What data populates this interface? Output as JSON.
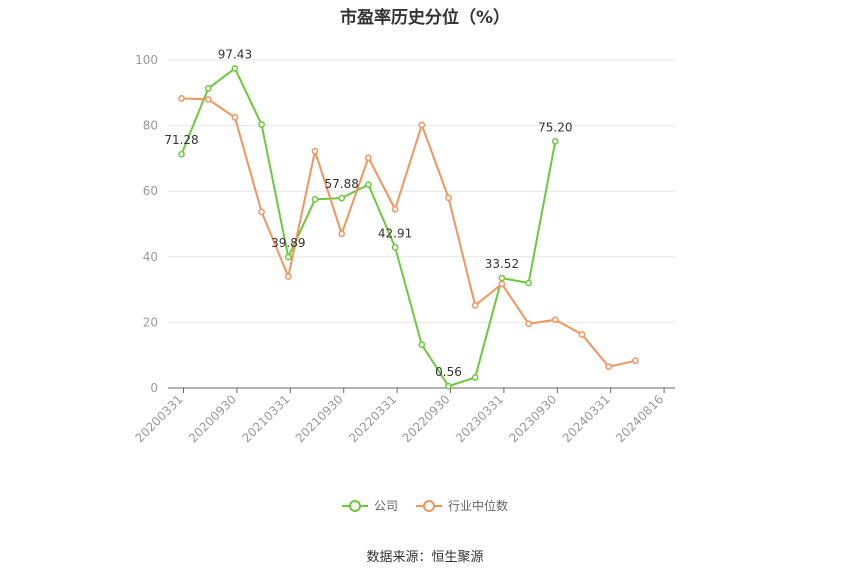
{
  "chart_data": {
    "type": "line",
    "title": "市盈率历史分位（%）",
    "source": "数据来源：恒生聚源",
    "ylim": [
      0,
      100
    ],
    "yticks": [
      0,
      20,
      40,
      60,
      80,
      100
    ],
    "x_labels": [
      "20200331",
      "20200930",
      "20210331",
      "20210930",
      "20220331",
      "20220930",
      "20230331",
      "20230930",
      "20240331",
      "20240816"
    ],
    "legend_position": "bottom",
    "grid": true,
    "series": [
      {
        "name": "公司",
        "color": "#6dc83c",
        "values": [
          71.28,
          91.3,
          97.43,
          80.3,
          39.89,
          57.5,
          57.88,
          62.0,
          42.91,
          13.2,
          0.56,
          3.2,
          33.52,
          32.0,
          75.2,
          null,
          null,
          null
        ],
        "labels": [
          "71.28",
          null,
          "97.43",
          null,
          "39.89",
          null,
          "57.88",
          null,
          "42.91",
          null,
          "0.56",
          null,
          "33.52",
          null,
          "75.20",
          null,
          null,
          null
        ]
      },
      {
        "name": "行业中位数",
        "color": "#f0955e",
        "values": [
          88.3,
          88.0,
          82.5,
          53.7,
          34.0,
          72.2,
          47.0,
          70.2,
          54.5,
          80.2,
          58.0,
          25.2,
          31.7,
          19.6,
          20.8,
          16.3,
          6.5,
          8.3
        ],
        "labels": []
      }
    ]
  }
}
